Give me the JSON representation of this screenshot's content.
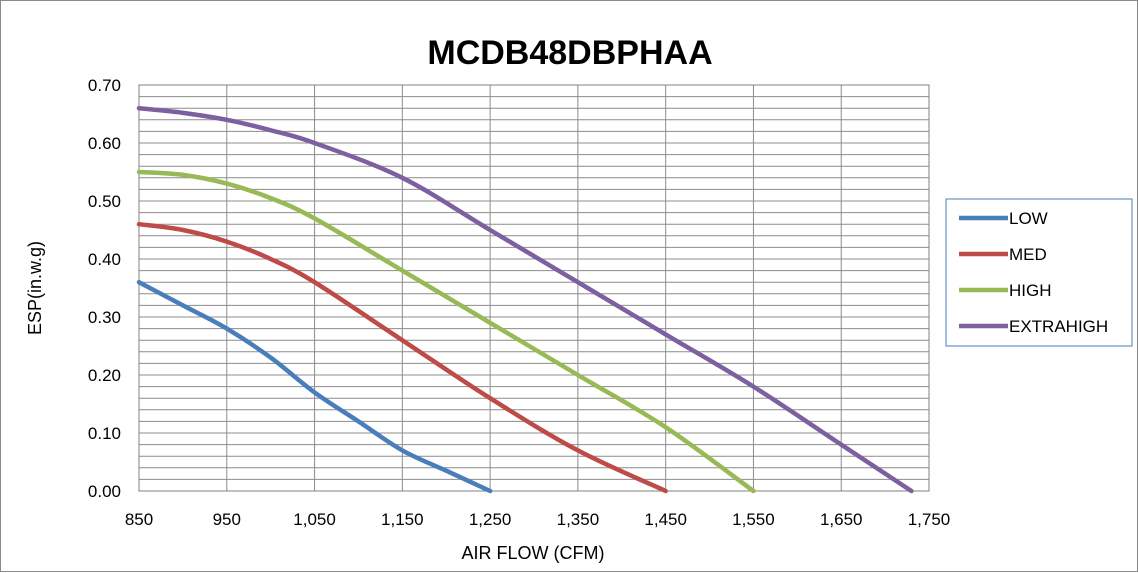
{
  "chart_data": {
    "type": "line",
    "title": "MCDB48DBPHAA",
    "xlabel": "AIR FLOW (CFM)",
    "ylabel": "ESP(in.w.g)",
    "xlim": [
      850,
      1750
    ],
    "ylim": [
      0,
      0.7
    ],
    "x_ticks": [
      850,
      950,
      1050,
      1150,
      1250,
      1350,
      1450,
      1550,
      1650,
      1750
    ],
    "x_tick_labels": [
      "850",
      "950",
      "1,050",
      "1,150",
      "1,250",
      "1,350",
      "1,450",
      "1,550",
      "1,650",
      "1,750"
    ],
    "y_ticks": [
      0,
      0.1,
      0.2,
      0.3,
      0.4,
      0.5,
      0.6,
      0.7
    ],
    "y_tick_labels": [
      "0.00",
      "0.10",
      "0.20",
      "0.30",
      "0.40",
      "0.50",
      "0.60",
      "0.70"
    ],
    "grid": true,
    "legend_position": "right",
    "series": [
      {
        "name": "LOW",
        "color": "#4a7ebb",
        "points": [
          [
            850,
            0.36
          ],
          [
            900,
            0.32
          ],
          [
            950,
            0.28
          ],
          [
            1000,
            0.23
          ],
          [
            1050,
            0.17
          ],
          [
            1100,
            0.12
          ],
          [
            1150,
            0.07
          ],
          [
            1200,
            0.035
          ],
          [
            1250,
            0.0
          ]
        ]
      },
      {
        "name": "MED",
        "color": "#be4b48",
        "points": [
          [
            850,
            0.46
          ],
          [
            900,
            0.45
          ],
          [
            950,
            0.43
          ],
          [
            1000,
            0.4
          ],
          [
            1050,
            0.36
          ],
          [
            1150,
            0.26
          ],
          [
            1250,
            0.16
          ],
          [
            1350,
            0.07
          ],
          [
            1450,
            0.0
          ]
        ]
      },
      {
        "name": "HIGH",
        "color": "#98b954",
        "points": [
          [
            850,
            0.55
          ],
          [
            900,
            0.545
          ],
          [
            950,
            0.53
          ],
          [
            1000,
            0.505
          ],
          [
            1050,
            0.47
          ],
          [
            1150,
            0.38
          ],
          [
            1250,
            0.29
          ],
          [
            1350,
            0.2
          ],
          [
            1450,
            0.11
          ],
          [
            1550,
            0.0
          ]
        ]
      },
      {
        "name": "EXTRAHIGH",
        "color": "#7d60a0",
        "points": [
          [
            850,
            0.66
          ],
          [
            900,
            0.652
          ],
          [
            950,
            0.64
          ],
          [
            1000,
            0.622
          ],
          [
            1050,
            0.6
          ],
          [
            1150,
            0.54
          ],
          [
            1250,
            0.45
          ],
          [
            1350,
            0.36
          ],
          [
            1450,
            0.27
          ],
          [
            1550,
            0.18
          ],
          [
            1650,
            0.08
          ],
          [
            1730,
            0.0
          ]
        ]
      }
    ]
  }
}
